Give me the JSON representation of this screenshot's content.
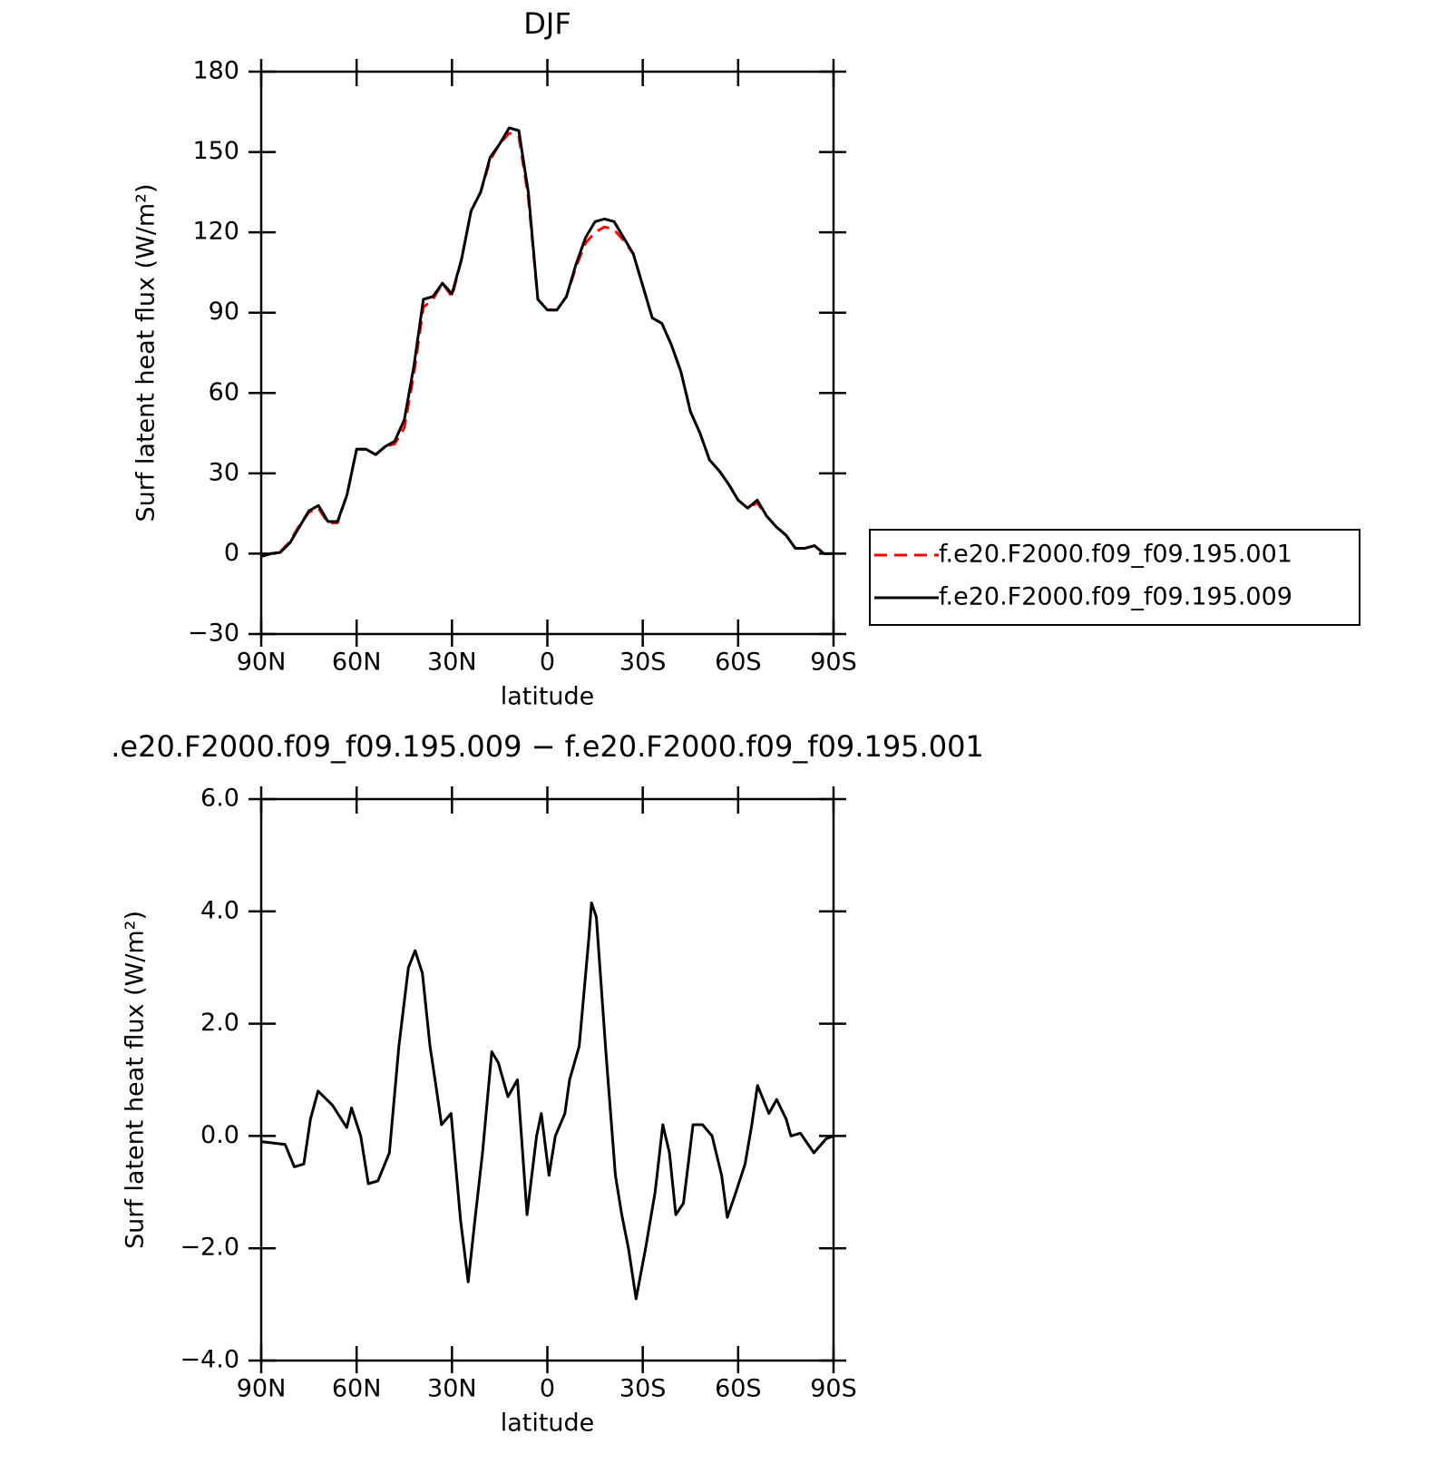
{
  "chart_data": [
    {
      "type": "line",
      "title": "DJF",
      "xlabel": "latitude",
      "ylabel": "Surf latent heat flux (W/m²)",
      "x": [
        90,
        87,
        84,
        81,
        78,
        75,
        72,
        69,
        66,
        63,
        60,
        57,
        54,
        51,
        48,
        45,
        42,
        39,
        36,
        33,
        30,
        27,
        24,
        21,
        18,
        15,
        12,
        9,
        6,
        3,
        0,
        -3,
        -6,
        -9,
        -12,
        -15,
        -18,
        -21,
        -24,
        -27,
        -30,
        -33,
        -36,
        -39,
        -42,
        -45,
        -48,
        -51,
        -54,
        -57,
        -60,
        -63,
        -66,
        -69,
        -72,
        -75,
        -78,
        -81,
        -84,
        -87,
        -90
      ],
      "series": [
        {
          "name": "f.e20.F2000.f09_f09.195.001",
          "color": "#ff0000",
          "line_style": "dashed",
          "values": [
            -1,
            0,
            0.7,
            4.5,
            10.5,
            15.5,
            17,
            11.5,
            11.5,
            22,
            39,
            39,
            37,
            40,
            41,
            47,
            67,
            92,
            95,
            101,
            96,
            110,
            128,
            135,
            147,
            153,
            157,
            156,
            133,
            95,
            91,
            91,
            96,
            107,
            116,
            120,
            122,
            121,
            117,
            112,
            100,
            88,
            86,
            78,
            68,
            53,
            45,
            35,
            31,
            26,
            20,
            17,
            19,
            14,
            10,
            7,
            2,
            2,
            3,
            0,
            0
          ]
        },
        {
          "name": "f.e20.F2000.f09_f09.195.009",
          "color": "#000000",
          "line_style": "solid",
          "values": [
            -1,
            0,
            0.5,
            4,
            10,
            16,
            18,
            12,
            12,
            22,
            39,
            39,
            37,
            40,
            42,
            50,
            70,
            95,
            96,
            101,
            97,
            110,
            128,
            135,
            148,
            153,
            159,
            158,
            135,
            95,
            91,
            91,
            96,
            108,
            118,
            124,
            125,
            124,
            118,
            112,
            100,
            88,
            86,
            78,
            68,
            53,
            45,
            35,
            31,
            26,
            20,
            17,
            20,
            14,
            10,
            7,
            2,
            2,
            3,
            0,
            0
          ]
        }
      ],
      "xlim": [
        90,
        -90
      ],
      "xticks": [
        {
          "value": 90,
          "label": "90N"
        },
        {
          "value": 60,
          "label": "60N"
        },
        {
          "value": 30,
          "label": "30N"
        },
        0,
        {
          "value": -30,
          "label": "30S"
        },
        {
          "value": -60,
          "label": "60S"
        },
        {
          "value": -90,
          "label": "90S"
        }
      ],
      "ylim": [
        -30,
        180
      ],
      "yticks": [
        {
          "value": -30,
          "label": "−30"
        },
        0,
        30,
        60,
        90,
        120,
        150,
        180
      ],
      "legend": "right"
    },
    {
      "type": "line",
      "title": ".e20.F2000.f09_f09.195.009 − f.e20.F2000.f09_f09.195.001",
      "xlabel": "latitude",
      "ylabel": "Surf latent heat flux (W/m²)",
      "x": [
        90,
        82.5,
        79.6,
        76.6,
        74.5,
        72.1,
        67.6,
        63.1,
        61.6,
        58.7,
        56.3,
        53.3,
        49.7,
        46.7,
        43.7,
        41.6,
        39.3,
        36.9,
        34.8,
        33.3,
        30.3,
        27.3,
        24.9,
        22.8,
        20.4,
        17.5,
        15.4,
        12.4,
        9.4,
        6.4,
        3.4,
        1.9,
        -0.5,
        -2.5,
        -5.5,
        -7,
        -10,
        -13,
        -13.9,
        -15.4,
        -18.4,
        -21.4,
        -23.4,
        -25.5,
        -27.9,
        -30.9,
        -33.9,
        -36.3,
        -38.4,
        -40.4,
        -42.8,
        -45.8,
        -48.8,
        -51.8,
        -54.8,
        -56.6,
        -59.3,
        -62.2,
        -64.3,
        -66.1,
        -69.7,
        -72.1,
        -75.1,
        -76.6,
        -79.6,
        -83.8,
        -87.7,
        -90
      ],
      "series": [
        {
          "color": "#000000",
          "line_style": "solid",
          "values": [
            -0.1,
            -0.15,
            -0.55,
            -0.5,
            0.3,
            0.8,
            0.55,
            0.15,
            0.5,
            0,
            -0.85,
            -0.8,
            -0.3,
            1.6,
            3,
            3.3,
            2.9,
            1.6,
            0.8,
            0.2,
            0.4,
            -1.5,
            -2.6,
            -1.5,
            -0.3,
            1.5,
            1.3,
            0.7,
            1,
            -1.4,
            0,
            0.4,
            -0.7,
            0,
            0.4,
            1,
            1.6,
            3.5,
            4.15,
            3.9,
            1.5,
            -0.7,
            -1.4,
            -2,
            -2.9,
            -2,
            -1,
            0.2,
            -0.3,
            -1.4,
            -1.2,
            0.2,
            0.2,
            0,
            -0.7,
            -1.45,
            -1,
            -0.5,
            0.2,
            0.9,
            0.4,
            0.65,
            0.3,
            0,
            0.05,
            -0.3,
            -0.05,
            0
          ]
        }
      ],
      "xlim": [
        90,
        -90
      ],
      "xticks": [
        {
          "value": 90,
          "label": "90N"
        },
        {
          "value": 60,
          "label": "60N"
        },
        {
          "value": 30,
          "label": "30N"
        },
        0,
        {
          "value": -30,
          "label": "30S"
        },
        {
          "value": -60,
          "label": "60S"
        },
        {
          "value": -90,
          "label": "90S"
        }
      ],
      "ylim": [
        -4,
        6
      ],
      "yticks": [
        {
          "value": -4,
          "label": "−4.0"
        },
        {
          "value": -2,
          "label": "−2.0"
        },
        {
          "value": 0,
          "label": "0.0"
        },
        {
          "value": 2,
          "label": "2.0"
        },
        {
          "value": 4,
          "label": "4.0"
        },
        {
          "value": 6,
          "label": "6.0"
        }
      ]
    }
  ]
}
